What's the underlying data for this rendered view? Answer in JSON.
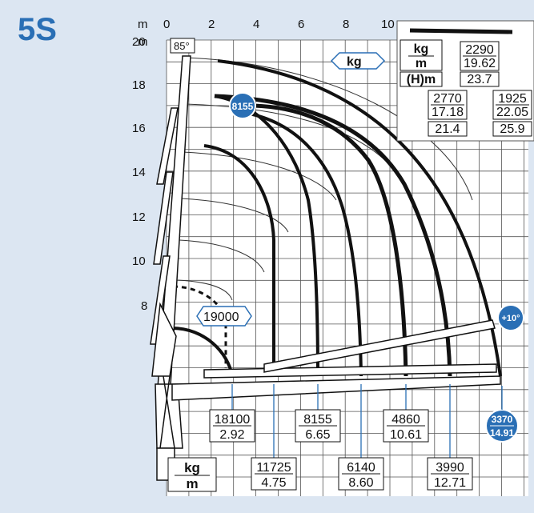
{
  "model_label": "5S",
  "colors": {
    "accent": "#2a6fb5",
    "background": "#dce6f2",
    "grid_bg": "#ffffff",
    "ink": "#111111"
  },
  "axis": {
    "x_unit": "m",
    "y_unit": "m",
    "x_ticks": [
      "0",
      "2",
      "4",
      "6",
      "8",
      "10"
    ],
    "y_ticks": [
      "20",
      "18",
      "16",
      "14",
      "12",
      "10",
      "8"
    ]
  },
  "angle_label": "85°",
  "unit_tag": "kg",
  "special_load": "19000",
  "badge_top": "8155",
  "badge_extension": "+10°",
  "badge_bottom": {
    "kg": "3370",
    "m": "14.91"
  },
  "legend_top": {
    "kg": "kg",
    "m": "m",
    "h": "(H)m"
  },
  "legend_bottom": {
    "kg": "kg",
    "m": "m"
  },
  "top_values": [
    {
      "kg": "2290",
      "m": "19.62",
      "h": "23.7"
    },
    {
      "kg": "2770",
      "m": "17.18",
      "h": "21.4"
    },
    {
      "kg": "1925",
      "m": "22.05",
      "h": "25.9"
    }
  ],
  "bottom_values_upper": [
    {
      "kg": "18100",
      "m": "2.92"
    },
    {
      "kg": "8155",
      "m": "6.65"
    },
    {
      "kg": "4860",
      "m": "10.61"
    }
  ],
  "bottom_values_lower": [
    {
      "kg": "11725",
      "m": "4.75"
    },
    {
      "kg": "6140",
      "m": "8.60"
    },
    {
      "kg": "3990",
      "m": "12.71"
    }
  ]
}
